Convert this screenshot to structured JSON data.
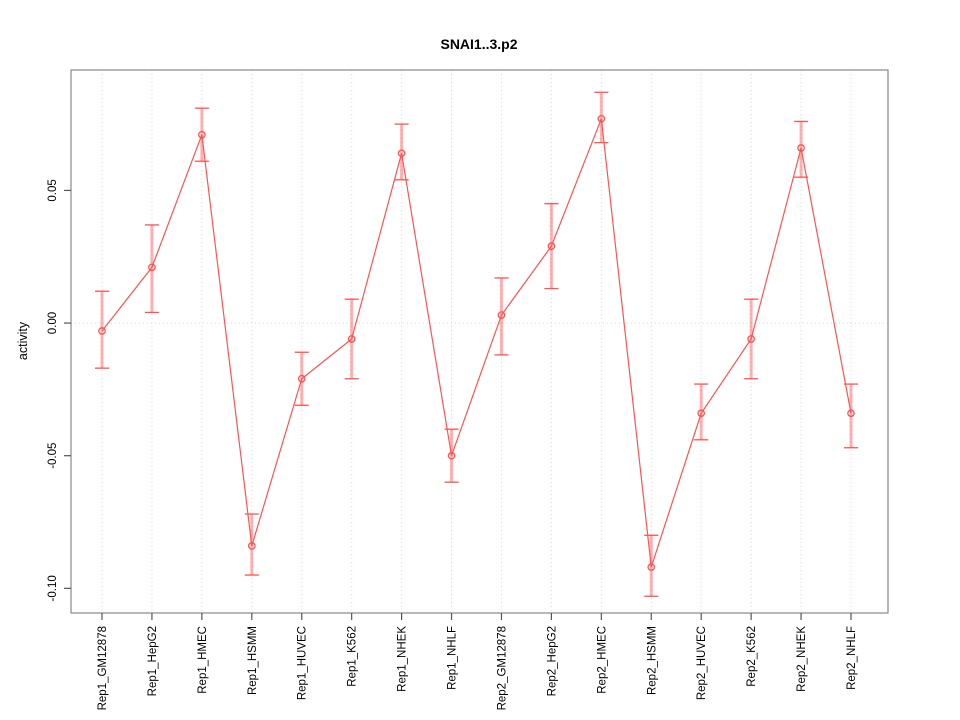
{
  "window": {
    "background": "#ffffff"
  },
  "chart_data": {
    "type": "line",
    "title": "SNAI1..3.p2",
    "xlabel": "",
    "ylabel": "activity",
    "legend_position": "none",
    "marker": "open-circle",
    "error_bars": true,
    "grid": {
      "vertical_dotted_per_category": true,
      "horizontal_dotted_zero_line": true
    },
    "categories": [
      "Rep1_GM12878",
      "Rep1_HepG2",
      "Rep1_HMEC",
      "Rep1_HSMM",
      "Rep1_HUVEC",
      "Rep1_K562",
      "Rep1_NHEK",
      "Rep1_NHLF",
      "Rep2_GM12878",
      "Rep2_HepG2",
      "Rep2_HMEC",
      "Rep2_HSMM",
      "Rep2_HUVEC",
      "Rep2_K562",
      "Rep2_NHEK",
      "Rep2_NHLF"
    ],
    "series": [
      {
        "name": "activity",
        "values": [
          -0.003,
          0.021,
          0.071,
          -0.084,
          -0.021,
          -0.006,
          0.064,
          -0.05,
          0.003,
          0.029,
          0.077,
          -0.092,
          -0.034,
          -0.006,
          0.066,
          -0.034
        ],
        "error_high": [
          0.012,
          0.037,
          0.081,
          -0.072,
          -0.011,
          0.009,
          0.075,
          -0.04,
          0.017,
          0.045,
          0.087,
          -0.08,
          -0.023,
          0.009,
          0.076,
          -0.023
        ],
        "error_low": [
          -0.017,
          0.004,
          0.061,
          -0.095,
          -0.031,
          -0.021,
          0.054,
          -0.06,
          -0.012,
          0.013,
          0.068,
          -0.103,
          -0.044,
          -0.021,
          0.055,
          -0.047
        ]
      }
    ],
    "yticks": [
      0.05,
      0.0,
      -0.05,
      -0.1
    ],
    "ytick_labels": [
      "0.05",
      "0.00",
      "-0.05",
      "-0.10"
    ],
    "ylim": [
      -0.1093,
      0.0954
    ],
    "colors": {
      "series": "#ff5252",
      "error_stem": "rgba(255,82,82,0.45)",
      "grid": "#d8d8d8",
      "box": "#888888",
      "tick": "#555555",
      "text": "#000000"
    }
  }
}
